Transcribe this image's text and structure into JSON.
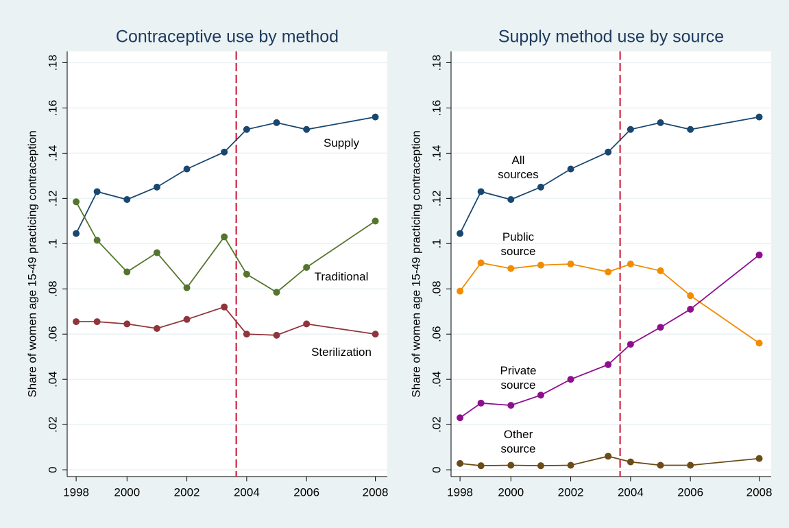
{
  "chart_data": [
    {
      "type": "line",
      "title": "Contraceptive use by method",
      "y_label": "Share of women age 15-49 practicing contraception",
      "x": [
        1998.3,
        1999,
        2000,
        2001,
        2002,
        2003.25,
        2004,
        2005,
        2006,
        2008.3
      ],
      "xlim": [
        1998,
        2008.7
      ],
      "xticks": [
        {
          "value": 1998.3,
          "label": "1998"
        },
        2000,
        2002,
        2004,
        2006,
        {
          "value": 2008.3,
          "label": "2008"
        }
      ],
      "ylim": [
        -0.003,
        0.185
      ],
      "yticks": [
        0,
        {
          "value": 0.02,
          "label": ".02"
        },
        {
          "value": 0.04,
          "label": ".04"
        },
        {
          "value": 0.06,
          "label": ".06"
        },
        {
          "value": 0.08,
          "label": ".08"
        },
        {
          "value": 0.1,
          "label": ".1"
        },
        {
          "value": 0.12,
          "label": ".12"
        },
        {
          "value": 0.14,
          "label": ".14"
        },
        {
          "value": 0.16,
          "label": ".16"
        },
        {
          "value": 0.18,
          "label": ".18"
        }
      ],
      "grid": true,
      "xline": {
        "value": 2003.65,
        "color": "#c8102e"
      },
      "series": [
        {
          "name": "Supply",
          "color": "#1a476f",
          "values": [
            0.1045,
            0.123,
            0.1195,
            0.125,
            0.133,
            0.1405,
            0.1505,
            0.1535,
            0.1505,
            0.156
          ]
        },
        {
          "name": "Traditional",
          "color": "#55752f",
          "values": [
            0.1185,
            0.1015,
            0.0875,
            0.096,
            0.0805,
            0.103,
            0.0865,
            0.0785,
            0.0895,
            0.11
          ]
        },
        {
          "name": "Sterilization",
          "color": "#90353b",
          "values": [
            0.0655,
            0.0655,
            0.0645,
            0.0625,
            0.0665,
            0.072,
            0.06,
            0.0595,
            0.0645,
            0.06
          ]
        }
      ]
    },
    {
      "type": "line",
      "title": "Supply method use by source",
      "y_label": "Share of women age 15-49 practicing contraception",
      "x": [
        1998.3,
        1999,
        2000,
        2001,
        2002,
        2003.25,
        2004,
        2005,
        2006,
        2008.3
      ],
      "xlim": [
        1998,
        2008.7
      ],
      "xticks": [
        {
          "value": 1998.3,
          "label": "1998"
        },
        2000,
        2002,
        2004,
        2006,
        {
          "value": 2008.3,
          "label": "2008"
        }
      ],
      "ylim": [
        -0.003,
        0.185
      ],
      "yticks": [
        0,
        {
          "value": 0.02,
          "label": ".02"
        },
        {
          "value": 0.04,
          "label": ".04"
        },
        {
          "value": 0.06,
          "label": ".06"
        },
        {
          "value": 0.08,
          "label": ".08"
        },
        {
          "value": 0.1,
          "label": ".1"
        },
        {
          "value": 0.12,
          "label": ".12"
        },
        {
          "value": 0.14,
          "label": ".14"
        },
        {
          "value": 0.16,
          "label": ".16"
        },
        {
          "value": 0.18,
          "label": ".18"
        }
      ],
      "grid": true,
      "xline": {
        "value": 2003.65,
        "color": "#c8102e"
      },
      "series": [
        {
          "name": "All sources",
          "color": "#1a476f",
          "values": [
            0.1045,
            0.123,
            0.1195,
            0.125,
            0.133,
            0.1405,
            0.1505,
            0.1535,
            0.1505,
            0.156
          ]
        },
        {
          "name": "Public source",
          "color": "#f08c00",
          "values": [
            0.079,
            0.0915,
            0.089,
            0.0905,
            0.091,
            0.0875,
            0.091,
            0.088,
            0.077,
            0.056
          ]
        },
        {
          "name": "Private source",
          "color": "#8e0f8e",
          "values": [
            0.023,
            0.0295,
            0.0285,
            0.033,
            0.04,
            0.0465,
            0.0555,
            0.063,
            0.071,
            0.095
          ]
        },
        {
          "name": "Other source",
          "color": "#6b4b17",
          "values": [
            0.0028,
            0.0018,
            0.002,
            0.0018,
            0.002,
            0.006,
            0.0035,
            0.002,
            0.002,
            0.005
          ]
        }
      ]
    }
  ]
}
